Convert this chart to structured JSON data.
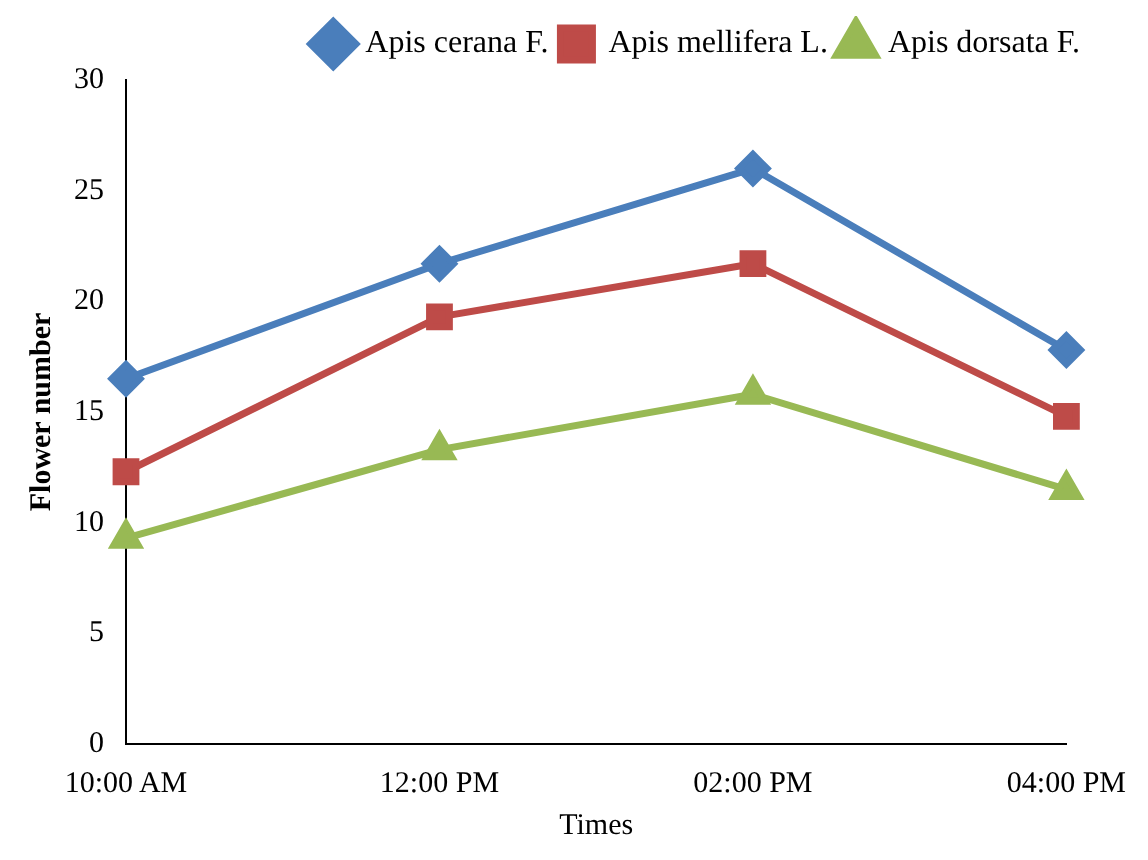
{
  "chart_data": {
    "type": "line",
    "xlabel": "Times",
    "ylabel": "Flower number",
    "categories": [
      "10:00 AM",
      "12:00 PM",
      "02:00 PM",
      "04:00 PM"
    ],
    "series": [
      {
        "name": "Apis cerana F.",
        "color": "#4a7ebb",
        "marker": "diamond",
        "values": [
          16.5,
          21.7,
          26,
          17.8
        ]
      },
      {
        "name": "Apis mellifera L.",
        "color": "#be4b48",
        "marker": "square",
        "values": [
          12.3,
          19.3,
          21.7,
          14.8
        ]
      },
      {
        "name": "Apis dorsata F.",
        "color": "#98b954",
        "marker": "triangle",
        "values": [
          9.3,
          13.3,
          15.8,
          11.5
        ]
      }
    ],
    "ylim": [
      0,
      30
    ],
    "yticks": [
      0,
      5,
      10,
      15,
      20,
      25,
      30
    ],
    "grid": false,
    "legend": "top",
    "line_style": "solid"
  }
}
